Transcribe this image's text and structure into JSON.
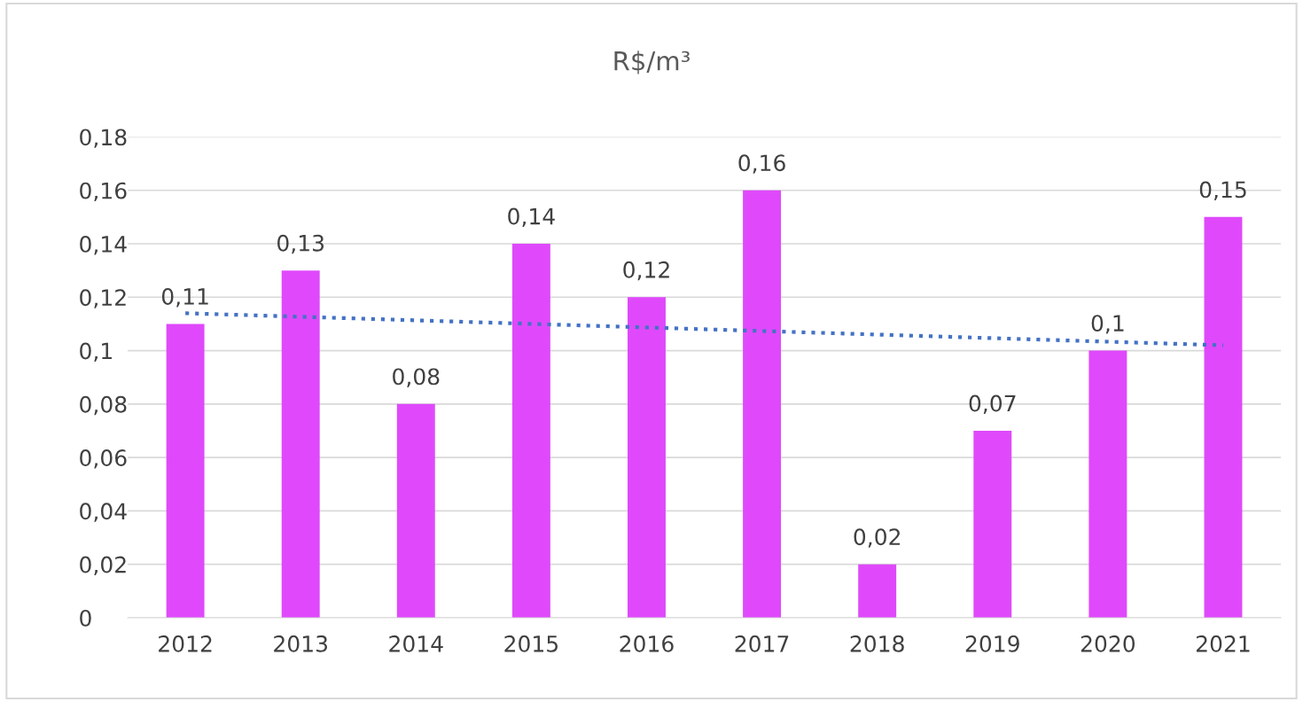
{
  "chart_data": {
    "type": "bar",
    "title": "R$/m³",
    "categories": [
      "2012",
      "2013",
      "2014",
      "2015",
      "2016",
      "2017",
      "2018",
      "2019",
      "2020",
      "2021"
    ],
    "series": [
      {
        "color": "#df49fb",
        "values": [
          0.11,
          0.13,
          0.08,
          0.14,
          0.12,
          0.16,
          0.02,
          0.07,
          0.1,
          0.15
        ],
        "value_labels": [
          "0,11",
          "0,13",
          "0,08",
          "0,14",
          "0,12",
          "0,16",
          "0,02",
          "0,07",
          "0,1",
          "0,15"
        ]
      },
      {
        "type": "line",
        "color": "#4472c4",
        "line_style": "dotted",
        "values": [
          0.114,
          null,
          null,
          null,
          null,
          null,
          null,
          null,
          null,
          0.102
        ]
      }
    ],
    "ylim": [
      0,
      0.18
    ],
    "yticks": [
      0,
      {
        "value": 0.02,
        "label": "0,02"
      },
      {
        "value": 0.04,
        "label": "0,04"
      },
      {
        "value": 0.06,
        "label": "0,06"
      },
      {
        "value": 0.08,
        "label": "0,08"
      },
      {
        "value": 0.1,
        "label": "0,1"
      },
      {
        "value": 0.12,
        "label": "0,12"
      },
      {
        "value": 0.14,
        "label": "0,14"
      },
      {
        "value": 0.16,
        "label": "0,16"
      },
      {
        "value": 0.18,
        "label": "0,18"
      }
    ],
    "grid": "y"
  }
}
